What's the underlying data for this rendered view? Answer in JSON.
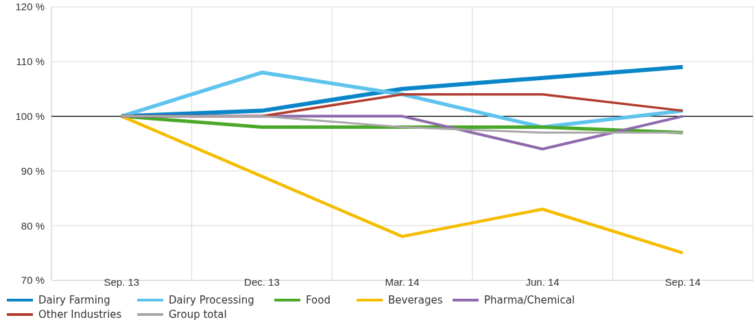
{
  "chart_data": {
    "type": "line",
    "categories": [
      "Sep. 13",
      "Dec. 13",
      "Mar. 14",
      "Jun. 14",
      "Sep. 14"
    ],
    "ylim": [
      70,
      120
    ],
    "yticks": [
      {
        "value": 70,
        "label": "70 %"
      },
      {
        "value": 80,
        "label": "80 %"
      },
      {
        "value": 90,
        "label": "90 %"
      },
      {
        "value": 100,
        "label": "100 %"
      },
      {
        "value": 110,
        "label": "110 %"
      },
      {
        "value": 120,
        "label": "120 %"
      }
    ],
    "grid": true,
    "legend": "bottom",
    "marker": "none",
    "line_style": "solid",
    "ref_lines": [
      {
        "axis": "y",
        "value": 100,
        "color": "#000000"
      }
    ],
    "series": [
      {
        "name": "Dairy Farming",
        "color": "#0a86c8",
        "values": [
          100,
          101,
          105,
          107,
          109
        ]
      },
      {
        "name": "Dairy Processing",
        "color": "#5ec4ee",
        "values": [
          100,
          108,
          104,
          98,
          101
        ]
      },
      {
        "name": "Food",
        "color": "#4aa829",
        "values": [
          100,
          98,
          98,
          98,
          97
        ]
      },
      {
        "name": "Beverages",
        "color": "#f5bd00",
        "values": [
          100,
          89,
          78,
          83,
          75
        ]
      },
      {
        "name": "Pharma/Chemical",
        "color": "#8e6aad",
        "values": [
          100,
          100,
          100,
          94,
          100
        ]
      },
      {
        "name": "Other Industries",
        "color": "#b23c2e",
        "values": [
          100,
          100,
          104,
          104,
          101
        ]
      },
      {
        "name": "Group total",
        "color": "#a8a8a8",
        "values": [
          100,
          100,
          98,
          97,
          97
        ]
      }
    ]
  }
}
